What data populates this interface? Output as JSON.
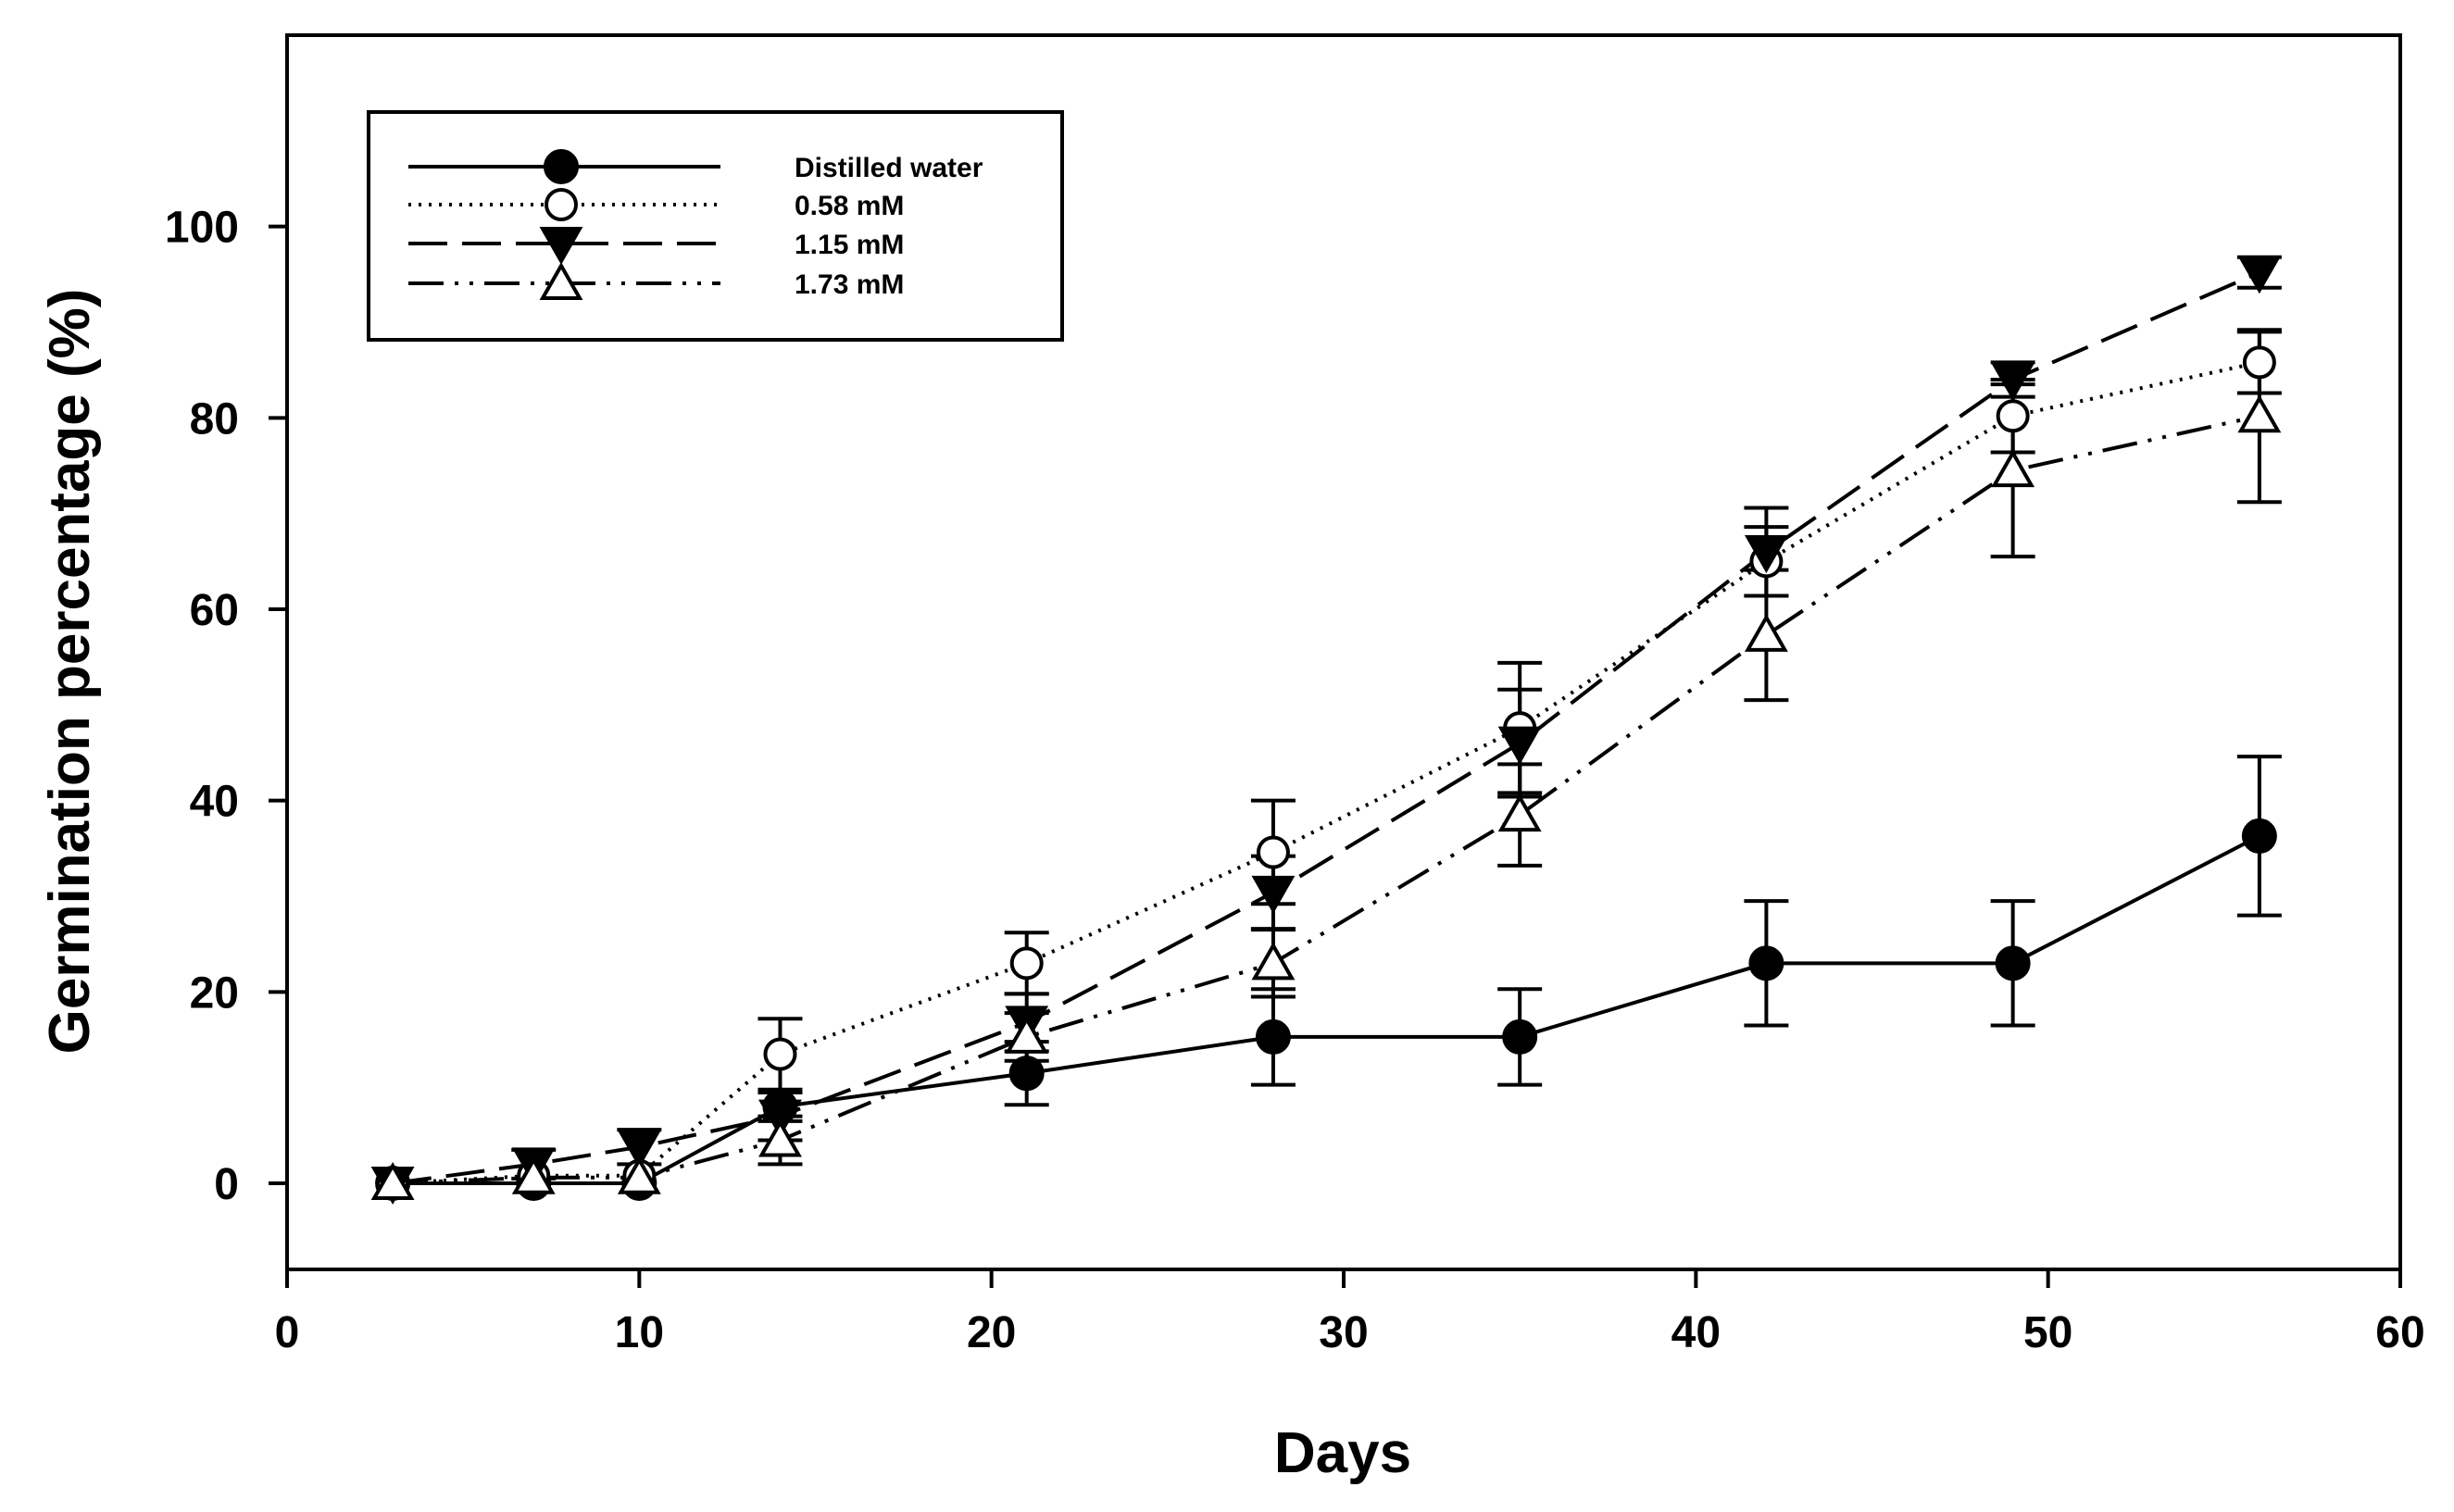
{
  "chart_data": {
    "type": "line",
    "title": "",
    "xlabel": "Days",
    "ylabel": "Germination percentage (%)",
    "xlim": [
      0,
      60
    ],
    "ylim": [
      -9,
      120
    ],
    "xticks": [
      0,
      10,
      20,
      30,
      40,
      50,
      60
    ],
    "yticks": [
      0,
      20,
      40,
      60,
      80,
      100
    ],
    "grid": false,
    "legend_position": "top-left",
    "series": [
      {
        "name": "Distilled water",
        "marker": "filled-circle",
        "line": "solid",
        "x": [
          3,
          7,
          10,
          14,
          21,
          28,
          35,
          42,
          49,
          56
        ],
        "y": [
          0,
          0,
          0,
          8,
          11.5,
          15.3,
          15.3,
          23,
          23,
          36.3
        ],
        "err": [
          0,
          0,
          0,
          1.5,
          3.3,
          5,
          5,
          6.5,
          6.5,
          8.3
        ]
      },
      {
        "name": "0.58 mM",
        "marker": "open-circle",
        "line": "dotted",
        "x": [
          3,
          7,
          10,
          14,
          21,
          28,
          35,
          42,
          49,
          56
        ],
        "y": [
          0,
          0.8,
          0.8,
          13.5,
          23,
          34.6,
          47.6,
          65,
          80.2,
          85.8
        ],
        "err": [
          0,
          0,
          0,
          3.7,
          3.2,
          5.4,
          6.8,
          3.6,
          3.8,
          3.2
        ]
      },
      {
        "name": "1.15 mM",
        "marker": "filled-triangle-down",
        "line": "dashed",
        "x": [
          3,
          7,
          10,
          14,
          21,
          28,
          35,
          42,
          49,
          56
        ],
        "y": [
          0,
          2,
          3.8,
          7,
          16.8,
          30.4,
          46,
          66,
          84,
          95.2
        ],
        "err": [
          0,
          1.5,
          1.8,
          2.5,
          3,
          3.8,
          5.6,
          4.6,
          1.8,
          1.6
        ]
      },
      {
        "name": "1.73 mM",
        "marker": "open-triangle-up",
        "line": "dash-dot-dot",
        "x": [
          3,
          7,
          10,
          14,
          21,
          28,
          35,
          42,
          49,
          56
        ],
        "y": [
          0,
          0.6,
          0.6,
          4.5,
          15.3,
          23,
          38.5,
          57.3,
          74.5,
          80.2
        ],
        "err": [
          0,
          0,
          0,
          2.5,
          2.5,
          3.5,
          5.3,
          6.8,
          9,
          9
        ]
      }
    ]
  }
}
